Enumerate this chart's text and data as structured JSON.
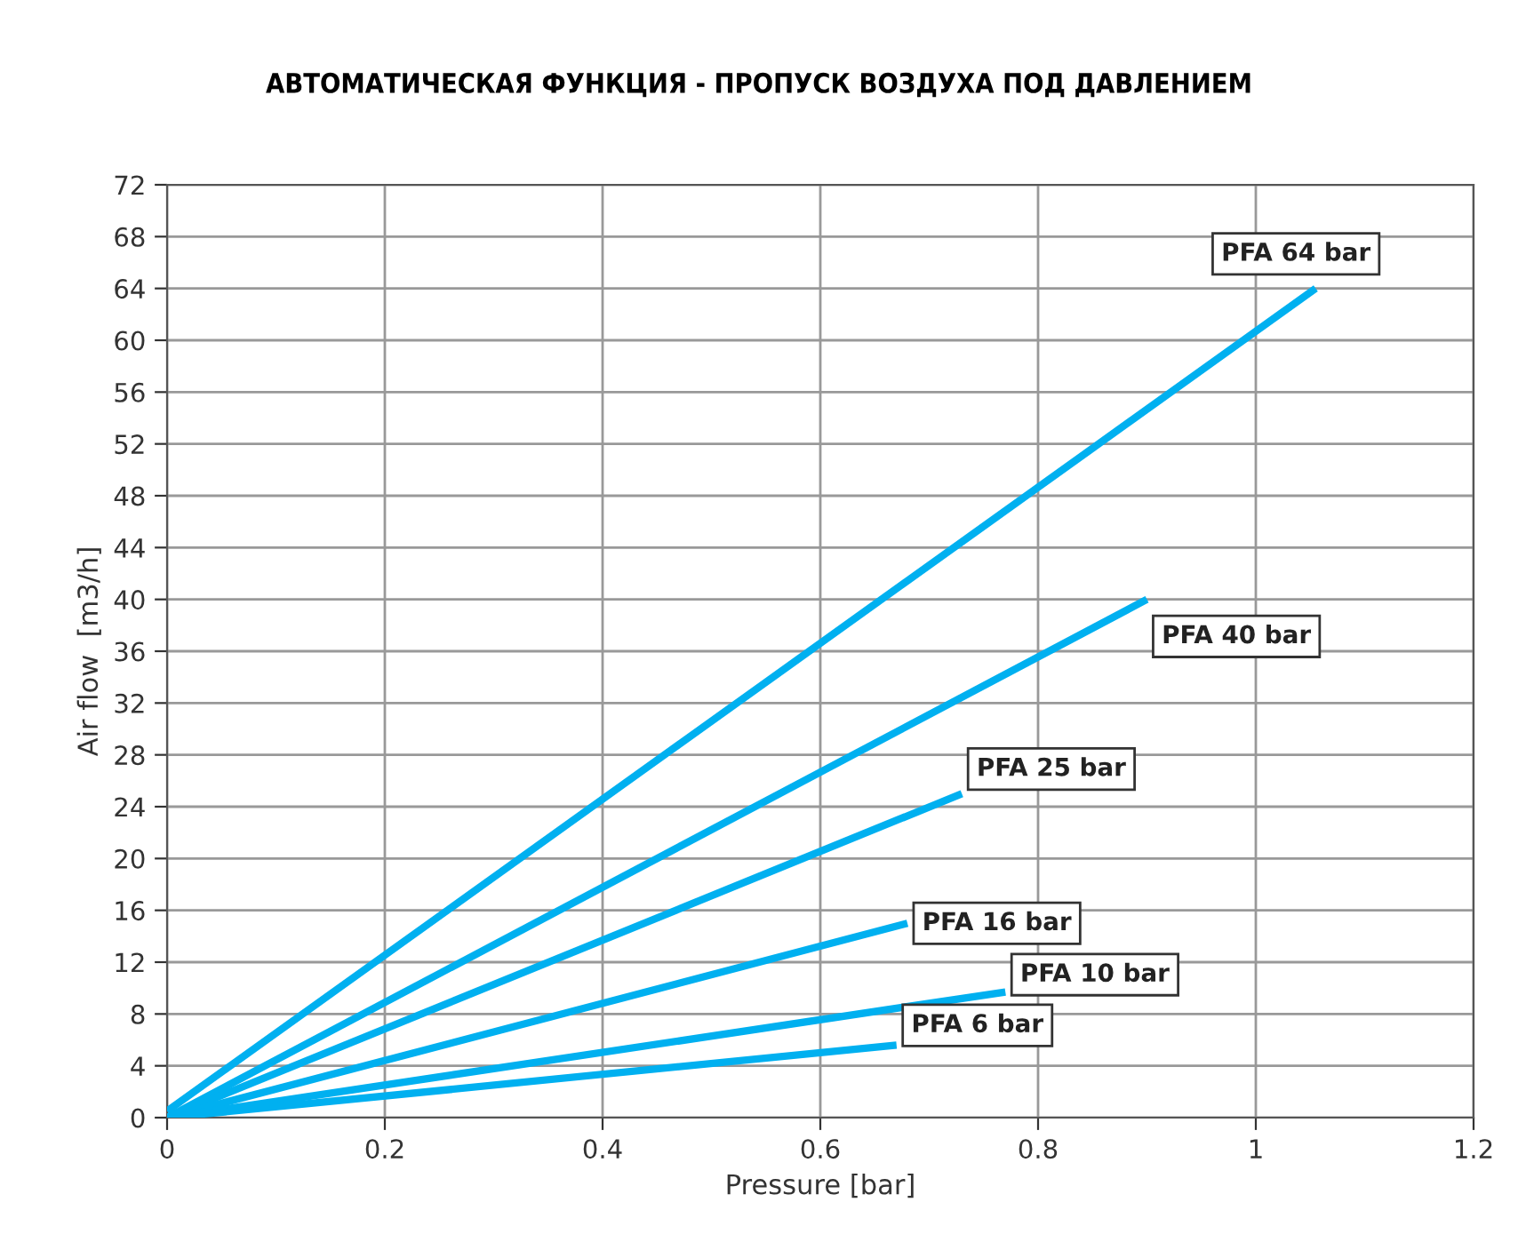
{
  "chart_data": {
    "type": "line",
    "title": "АВТОМАТИЧЕСКАЯ ФУНКЦИЯ - ПРОПУСК ВОЗДУХА ПОД ДАВЛЕНИЕМ",
    "xlabel": "Pressure [bar]",
    "ylabel": "Air flow  [m3/h]",
    "series": [
      {
        "name": "PFA 64 bar",
        "color": "#00b0f0",
        "x": [
          0,
          1.055
        ],
        "values": [
          0.5,
          64
        ]
      },
      {
        "name": "PFA 40 bar",
        "color": "#00b0f0",
        "x": [
          0,
          0.9
        ],
        "values": [
          0,
          40
        ]
      },
      {
        "name": "PFA 25 bar",
        "color": "#00b0f0",
        "x": [
          0,
          0.73
        ],
        "values": [
          0,
          25
        ]
      },
      {
        "name": "PFA 16 bar",
        "color": "#00b0f0",
        "x": [
          0,
          0.68
        ],
        "values": [
          0,
          15
        ]
      },
      {
        "name": "PFA 10 bar",
        "color": "#00b0f0",
        "x": [
          0,
          0.77
        ],
        "values": [
          0,
          9.7
        ]
      },
      {
        "name": "PFA 6 bar",
        "color": "#00b0f0",
        "x": [
          0,
          0.67
        ],
        "values": [
          0,
          5.6
        ]
      }
    ],
    "xlim": [
      0,
      1.2
    ],
    "xticks": [
      0,
      0.2,
      0.4,
      0.6,
      0.8,
      1,
      1.2
    ],
    "ylim": [
      0,
      72
    ],
    "yticks": [
      0,
      4,
      8,
      12,
      16,
      20,
      24,
      28,
      32,
      36,
      40,
      44,
      48,
      52,
      56,
      60,
      64,
      68,
      72
    ],
    "grid": true,
    "legend": false,
    "marker": "none",
    "line_style": "solid"
  }
}
